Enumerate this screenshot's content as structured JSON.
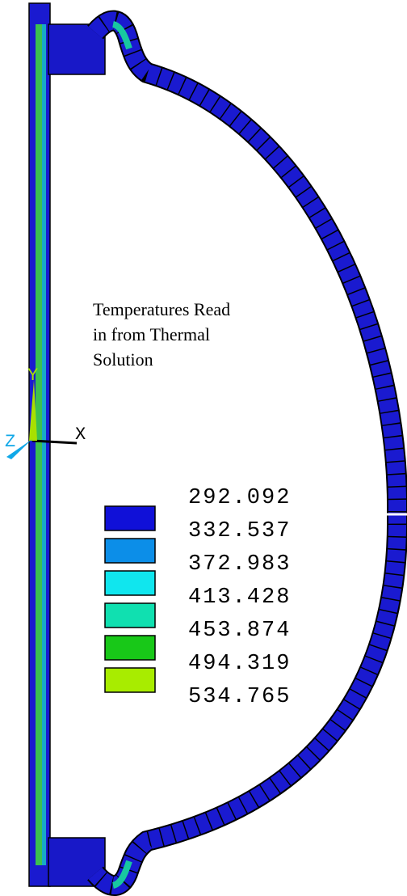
{
  "annotation": [
    "Temperatures Read",
    "in from Thermal",
    "Solution"
  ],
  "axes": {
    "x": "X",
    "y": "Y",
    "z": "Z"
  },
  "legend": {
    "levels": [
      292.092,
      332.537,
      372.983,
      413.428,
      453.874,
      494.319,
      534.765
    ],
    "colors": [
      "#1010d8",
      "#0c8ee8",
      "#10e6ee",
      "#10e0b0",
      "#18c818",
      "#a8ec00"
    ]
  }
}
